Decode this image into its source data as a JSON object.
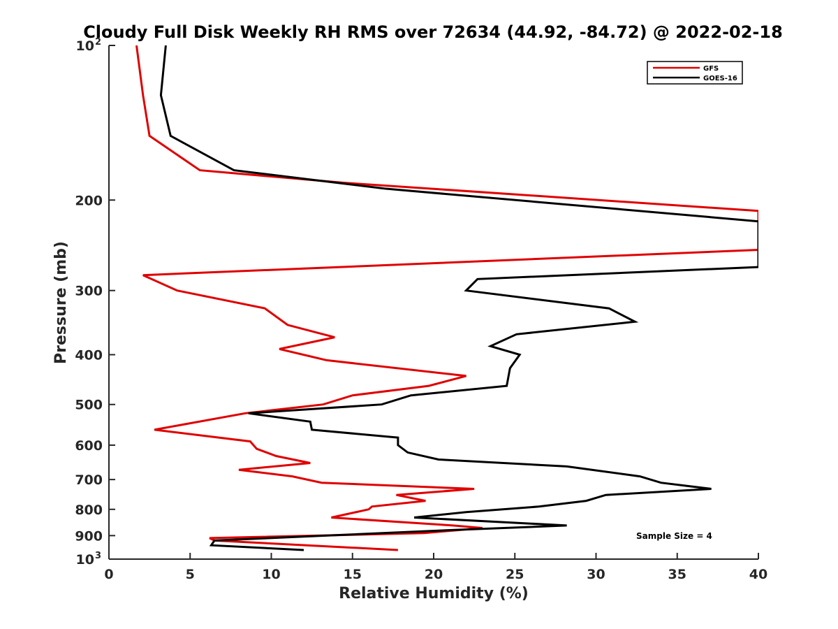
{
  "chart_data": {
    "type": "line",
    "title": "Cloudy Full Disk Weekly RH RMS over 72634 (44.92, -84.72) @ 2022-02-18",
    "xlabel": "Relative Humidity (%)",
    "ylabel": "Pressure (mb)",
    "xlim": [
      0,
      40
    ],
    "ylim": [
      1000,
      100
    ],
    "y_scale": "log",
    "y_reversed": true,
    "grid": false,
    "legend_position": "top-right",
    "x_ticks": [
      "0",
      "5",
      "10",
      "15",
      "20",
      "25",
      "30",
      "35",
      "40"
    ],
    "y_ticks": [
      {
        "value": 100,
        "base": "10",
        "exp": "2"
      },
      {
        "value": 200,
        "label": "200"
      },
      {
        "value": 300,
        "label": "300"
      },
      {
        "value": 400,
        "label": "400"
      },
      {
        "value": 500,
        "label": "500"
      },
      {
        "value": 600,
        "label": "600"
      },
      {
        "value": 700,
        "label": "700"
      },
      {
        "value": 800,
        "label": "800"
      },
      {
        "value": 900,
        "label": "900"
      },
      {
        "value": 1000,
        "base": "10",
        "exp": "3"
      }
    ],
    "annotation": "Sample Size = 4",
    "series": [
      {
        "name": "GFS",
        "color": "#e00000",
        "points": [
          [
            1.7,
            100
          ],
          [
            2.1,
            125
          ],
          [
            2.5,
            150
          ],
          [
            5.6,
            175
          ],
          [
            14.4,
            185
          ],
          [
            40,
            210
          ],
          [
            40,
            250
          ],
          [
            2.1,
            280
          ],
          [
            4.2,
            300
          ],
          [
            9.6,
            325
          ],
          [
            11.0,
            350
          ],
          [
            13.9,
            370
          ],
          [
            10.5,
            390
          ],
          [
            13.4,
            410
          ],
          [
            22.0,
            440
          ],
          [
            19.7,
            460
          ],
          [
            15.0,
            480
          ],
          [
            13.2,
            500
          ],
          [
            8.4,
            520
          ],
          [
            2.8,
            560
          ],
          [
            8.7,
            590
          ],
          [
            9.1,
            610
          ],
          [
            10.3,
            630
          ],
          [
            12.4,
            650
          ],
          [
            8.0,
            670
          ],
          [
            11.3,
            690
          ],
          [
            13.1,
            710
          ],
          [
            22.5,
            730
          ],
          [
            17.7,
            750
          ],
          [
            19.5,
            770
          ],
          [
            16.2,
            790
          ],
          [
            16.0,
            800
          ],
          [
            13.7,
            830
          ],
          [
            21.2,
            860
          ],
          [
            23.0,
            870
          ],
          [
            19.4,
            890
          ],
          [
            6.2,
            910
          ],
          [
            6.5,
            920
          ],
          [
            17.8,
            960
          ]
        ]
      },
      {
        "name": "GOES-16",
        "color": "#000000",
        "points": [
          [
            3.5,
            100
          ],
          [
            3.2,
            125
          ],
          [
            3.8,
            150
          ],
          [
            7.7,
            175
          ],
          [
            17.0,
            190
          ],
          [
            40,
            220
          ],
          [
            40,
            270
          ],
          [
            22.7,
            285
          ],
          [
            22.0,
            300
          ],
          [
            30.8,
            325
          ],
          [
            32.4,
            345
          ],
          [
            25.1,
            365
          ],
          [
            23.5,
            385
          ],
          [
            25.3,
            400
          ],
          [
            24.7,
            425
          ],
          [
            24.5,
            460
          ],
          [
            18.6,
            480
          ],
          [
            16.8,
            500
          ],
          [
            8.6,
            520
          ],
          [
            12.4,
            540
          ],
          [
            12.5,
            560
          ],
          [
            17.8,
            580
          ],
          [
            17.8,
            600
          ],
          [
            18.4,
            620
          ],
          [
            20.3,
            640
          ],
          [
            28.2,
            660
          ],
          [
            32.7,
            690
          ],
          [
            34.0,
            710
          ],
          [
            37.1,
            730
          ],
          [
            30.6,
            750
          ],
          [
            29.4,
            770
          ],
          [
            26.5,
            790
          ],
          [
            22.0,
            810
          ],
          [
            18.8,
            830
          ],
          [
            28.2,
            860
          ],
          [
            20.3,
            880
          ],
          [
            6.5,
            920
          ],
          [
            6.3,
            940
          ],
          [
            12.0,
            960
          ]
        ]
      }
    ]
  }
}
